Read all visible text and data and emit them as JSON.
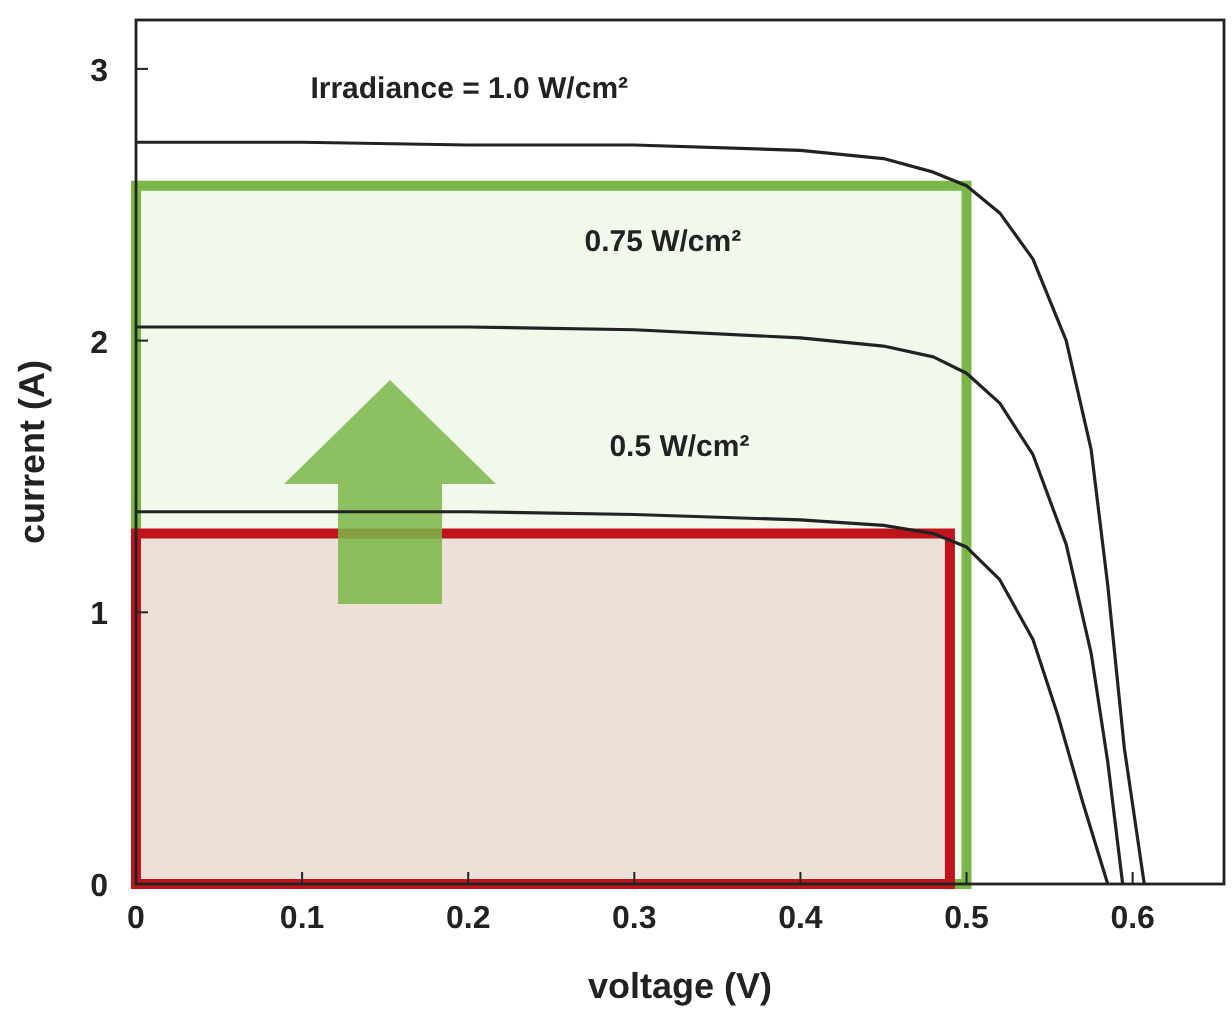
{
  "chart_data": {
    "type": "line",
    "xlabel": "voltage (V)",
    "ylabel": "current (A)",
    "xlim": [
      0,
      0.655
    ],
    "ylim": [
      0,
      3.18
    ],
    "xticks": [
      0,
      0.1,
      0.2,
      0.3,
      0.4,
      0.5,
      0.6
    ],
    "yticks": [
      0,
      1,
      2,
      3
    ],
    "grid": false,
    "marker": "none",
    "line_style": "solid",
    "series": [
      {
        "type": "area",
        "color": "#7ab648",
        "x": [
          0,
          0.5
        ],
        "values": [
          2.57,
          2.57
        ]
      },
      {
        "type": "area",
        "color": "#c0141c",
        "x": [
          0,
          0.49
        ],
        "values": [
          1.29,
          1.29
        ]
      },
      {
        "name": "Irradiance = 1.0 W/cm²",
        "color": "#222222",
        "x": [
          0,
          0.1,
          0.2,
          0.3,
          0.4,
          0.45,
          0.48,
          0.5,
          0.52,
          0.54,
          0.56,
          0.575,
          0.585,
          0.595,
          0.607
        ],
        "values": [
          2.73,
          2.73,
          2.72,
          2.72,
          2.7,
          2.67,
          2.62,
          2.57,
          2.47,
          2.3,
          2.0,
          1.6,
          1.1,
          0.5,
          0
        ]
      },
      {
        "name": "0.75 W/cm²",
        "color": "#222222",
        "x": [
          0,
          0.2,
          0.3,
          0.4,
          0.45,
          0.48,
          0.5,
          0.52,
          0.54,
          0.56,
          0.575,
          0.585,
          0.594
        ],
        "values": [
          2.05,
          2.05,
          2.04,
          2.01,
          1.98,
          1.94,
          1.88,
          1.77,
          1.58,
          1.25,
          0.85,
          0.45,
          0
        ]
      },
      {
        "name": "0.5 W/cm²",
        "color": "#222222",
        "x": [
          0,
          0.2,
          0.3,
          0.4,
          0.45,
          0.48,
          0.5,
          0.52,
          0.54,
          0.555,
          0.57,
          0.585
        ],
        "values": [
          1.37,
          1.37,
          1.36,
          1.34,
          1.32,
          1.29,
          1.24,
          1.12,
          0.9,
          0.62,
          0.3,
          0
        ]
      }
    ]
  }
}
